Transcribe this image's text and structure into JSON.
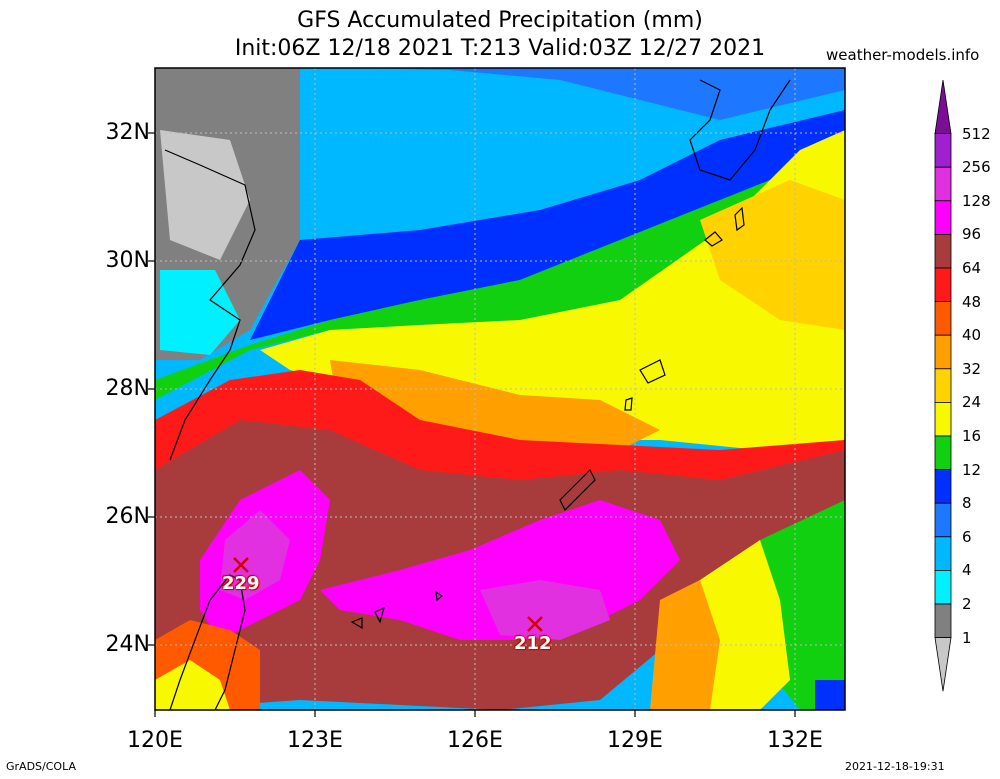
{
  "title_line1": "GFS Accumulated Precipitation (mm)",
  "title_line2": "Init:06Z 12/18 2021 T:213 Valid:03Z 12/27 2021",
  "site": "weather-models.info",
  "lat_labels": [
    "32N",
    "30N",
    "28N",
    "26N",
    "24N"
  ],
  "lon_labels": [
    "120E",
    "123E",
    "126E",
    "129E",
    "132E"
  ],
  "colorbar": {
    "labels": [
      "512",
      "256",
      "128",
      "96",
      "64",
      "48",
      "40",
      "32",
      "24",
      "16",
      "12",
      "8",
      "6",
      "4",
      "2",
      "1"
    ],
    "colors": [
      "#7a0f96",
      "#a020d0",
      "#e030e0",
      "#ff00ff",
      "#a83c3c",
      "#ff1a1a",
      "#ff5a00",
      "#ffa000",
      "#ffd200",
      "#f8f800",
      "#10d010",
      "#0030ff",
      "#1e78ff",
      "#00b8ff",
      "#00f0ff",
      "#808080",
      "#c8c8c8"
    ]
  },
  "markers": [
    {
      "label": "229"
    },
    {
      "label": "212"
    }
  ],
  "footer_left": "GrADS/COLA",
  "footer_right": "2021-12-18-19:31"
}
